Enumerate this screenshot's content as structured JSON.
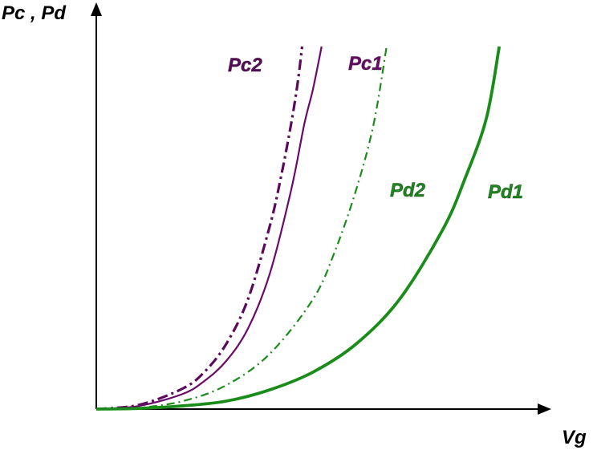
{
  "chart_data": {
    "type": "line",
    "title": "",
    "xlabel": "Vg",
    "ylabel": "Pc , Pd",
    "grid": false,
    "legend": "none",
    "xlim": [
      0,
      10
    ],
    "ylim": [
      0,
      10
    ],
    "series": [
      {
        "name": "Pc2",
        "color": "#5a0a5a",
        "style": "dash-dot-thick",
        "x": [
          0,
          1,
          2,
          2.5,
          3,
          3.5,
          4,
          4.25,
          4.5,
          4.65,
          4.75
        ],
        "y": [
          0,
          0.12,
          0.57,
          1.03,
          1.8,
          3.03,
          5.03,
          6.33,
          7.89,
          9.02,
          10.0
        ]
      },
      {
        "name": "Pc1",
        "color": "#6a0a6a",
        "style": "solid",
        "x": [
          0,
          1,
          2,
          2.5,
          3,
          3.5,
          4,
          4.5,
          4.8,
          5.0,
          5.2
        ],
        "y": [
          0,
          0.09,
          0.42,
          0.78,
          1.33,
          2.22,
          3.72,
          6.06,
          7.86,
          8.82,
          10.0
        ]
      },
      {
        "name": "Pd2",
        "color": "#1a8a1a",
        "style": "dash-dot-thin",
        "x": [
          0,
          1,
          2,
          3,
          4,
          5,
          5.5,
          6,
          6.4,
          6.7
        ],
        "y": [
          0,
          0.04,
          0.22,
          0.66,
          1.52,
          3.03,
          4.33,
          6.06,
          7.86,
          10.0
        ]
      },
      {
        "name": "Pd1",
        "color": "#1a8c1a",
        "style": "solid-thick",
        "x": [
          0,
          1,
          2,
          3,
          4,
          5,
          6,
          7,
          8,
          8.5,
          9.0,
          9.3
        ],
        "y": [
          0,
          0.02,
          0.09,
          0.22,
          0.53,
          1.02,
          1.8,
          3.03,
          4.96,
          6.33,
          8.01,
          10.0
        ]
      }
    ]
  }
}
